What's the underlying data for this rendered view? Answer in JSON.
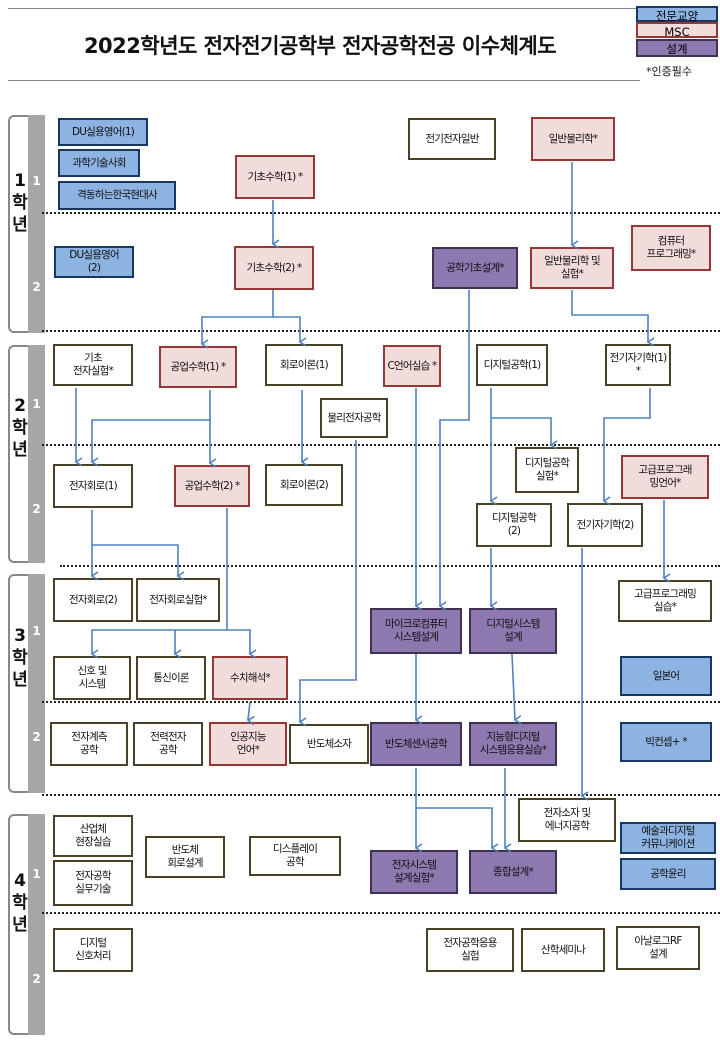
{
  "title": "2022학년도 전자전기공학부 전자공학전공 이수체계도",
  "legend": {
    "items": [
      {
        "label": "전문교양",
        "type": "blue"
      },
      {
        "label": "MSC",
        "type": "msc"
      },
      {
        "label": "설계",
        "type": "design"
      }
    ],
    "note": "*인증필수"
  },
  "colors": {
    "arrow": "#4f81bd",
    "white_border": "#4a4228",
    "msc_fill": "#f2dcdb",
    "msc_border": "#953735",
    "design_fill": "#8e78b0",
    "design_border": "#3f3151",
    "blue_fill": "#8db3e2",
    "blue_border": "#17375e"
  },
  "years": [
    {
      "label": "1\n학\n년",
      "semesters": [
        "1",
        "2"
      ]
    },
    {
      "label": "2\n학\n년",
      "semesters": [
        "1",
        "2"
      ]
    },
    {
      "label": "3\n학\n년",
      "semesters": [
        "1",
        "2"
      ]
    },
    {
      "label": "4\n학\n년",
      "semesters": [
        "1",
        "2"
      ]
    }
  ],
  "courses": [
    {
      "id": "du1",
      "label": "DU실용영어(1)",
      "type": "blue"
    },
    {
      "id": "sci",
      "label": "과학기술사회",
      "type": "blue"
    },
    {
      "id": "hist",
      "label": "격동하는한국현대사",
      "type": "blue"
    },
    {
      "id": "eegen",
      "label": "전기전자일반",
      "type": "white"
    },
    {
      "id": "phys",
      "label": "일반물리학*",
      "type": "msc"
    },
    {
      "id": "math1",
      "label": "기초수학(1) *",
      "type": "msc"
    },
    {
      "id": "du2",
      "label": "DU실용영어\n(2)",
      "type": "blue"
    },
    {
      "id": "math2",
      "label": "기초수학(2) *",
      "type": "msc"
    },
    {
      "id": "engdes",
      "label": "공학기초설계*",
      "type": "design"
    },
    {
      "id": "physlab",
      "label": "일반물리학 및\n실험*",
      "type": "msc"
    },
    {
      "id": "cprog",
      "label": "컴퓨터\n프로그래밍*",
      "type": "msc"
    },
    {
      "id": "elab",
      "label": "기초\n전자실험*",
      "type": "white"
    },
    {
      "id": "emath1",
      "label": "공업수학(1) *",
      "type": "msc"
    },
    {
      "id": "circ1",
      "label": "회로이론(1)",
      "type": "white"
    },
    {
      "id": "clang",
      "label": "C언어실습 *",
      "type": "msc"
    },
    {
      "id": "dig1",
      "label": "디지털공학(1)",
      "type": "white"
    },
    {
      "id": "em1",
      "label": "전기자기학(1) *",
      "type": "white"
    },
    {
      "id": "physel",
      "label": "물리전자공학",
      "type": "white"
    },
    {
      "id": "ecirc1",
      "label": "전자회로(1)",
      "type": "white"
    },
    {
      "id": "emath2",
      "label": "공업수학(2) *",
      "type": "msc"
    },
    {
      "id": "circ2",
      "label": "회로이론(2)",
      "type": "white"
    },
    {
      "id": "diglab",
      "label": "디지털공학\n실험*",
      "type": "white"
    },
    {
      "id": "advprog",
      "label": "고급프로그래\n밍언어*",
      "type": "msc"
    },
    {
      "id": "dig2",
      "label": "디지털공학\n(2)",
      "type": "white"
    },
    {
      "id": "em2",
      "label": "전기자기학(2)",
      "type": "white"
    },
    {
      "id": "ecirc2",
      "label": "전자회로(2)",
      "type": "white"
    },
    {
      "id": "ecirclab",
      "label": "전자회로실험*",
      "type": "white"
    },
    {
      "id": "advproglab",
      "label": "고급프로그래밍\n실습*",
      "type": "white"
    },
    {
      "id": "mcu",
      "label": "마이크로컴퓨터\n시스템설계",
      "type": "design"
    },
    {
      "id": "digsys",
      "label": "디지털시스템\n설계",
      "type": "design"
    },
    {
      "id": "sigsys",
      "label": "신호 및\n시스템",
      "type": "white"
    },
    {
      "id": "comm",
      "label": "통신이론",
      "type": "white"
    },
    {
      "id": "numer",
      "label": "수치해석*",
      "type": "msc"
    },
    {
      "id": "jpn",
      "label": "일본어",
      "type": "blue"
    },
    {
      "id": "meas",
      "label": "전자계측\n공학",
      "type": "white"
    },
    {
      "id": "power",
      "label": "전력전자\n공학",
      "type": "white"
    },
    {
      "id": "ailang",
      "label": "인공지능\n언어*",
      "type": "msc"
    },
    {
      "id": "semidev",
      "label": "반도체소자",
      "type": "white"
    },
    {
      "id": "semisens",
      "label": "반도체센서공학",
      "type": "design"
    },
    {
      "id": "intdig",
      "label": "지능형디지털\n시스템응용실습*",
      "type": "design"
    },
    {
      "id": "bigc",
      "label": "빅컨셉+ *",
      "type": "blue"
    },
    {
      "id": "edev",
      "label": "전자소자 및\n에너지공학",
      "type": "white"
    },
    {
      "id": "intern",
      "label": "산업체\n현장실습",
      "type": "white"
    },
    {
      "id": "practice",
      "label": "전자공학\n실무기술",
      "type": "white"
    },
    {
      "id": "semicirc",
      "label": "반도체\n회로설계",
      "type": "white"
    },
    {
      "id": "display",
      "label": "디스플레이\n공학",
      "type": "white"
    },
    {
      "id": "esyslab",
      "label": "전자시스템\n설계실험*",
      "type": "design"
    },
    {
      "id": "capstone",
      "label": "종합설계*",
      "type": "design"
    },
    {
      "id": "artdig",
      "label": "예술과디지털\n커뮤니케이션",
      "type": "blue"
    },
    {
      "id": "ethics",
      "label": "공학윤리",
      "type": "blue"
    },
    {
      "id": "dsp",
      "label": "디지털\n신호처리",
      "type": "white"
    },
    {
      "id": "eapplab",
      "label": "전자공학응용\n실험",
      "type": "white"
    },
    {
      "id": "seminar",
      "label": "산학세미나",
      "type": "white"
    },
    {
      "id": "analogrf",
      "label": "아날로그RF\n설계",
      "type": "white"
    }
  ]
}
